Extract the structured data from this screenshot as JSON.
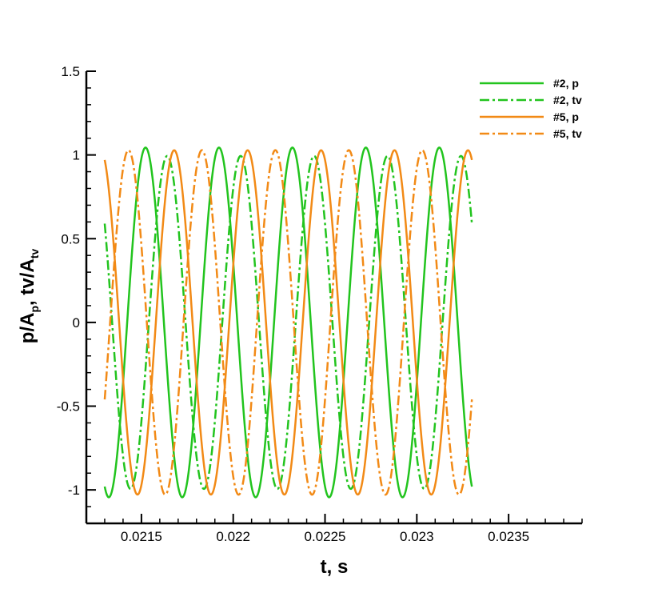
{
  "chart_data": {
    "type": "line",
    "title": "",
    "xlabel": "t, s",
    "ylabel": {
      "parts": [
        "p/A",
        "p",
        ", tv/A",
        "tv"
      ]
    },
    "xlim": [
      0.0212,
      0.0239
    ],
    "ylim": [
      -1.2,
      1.5
    ],
    "x_ticks": [
      {
        "value": 0.0215,
        "label": "0.0215"
      },
      {
        "value": 0.022,
        "label": "0.022"
      },
      {
        "value": 0.0225,
        "label": "0.0225"
      },
      {
        "value": 0.023,
        "label": "0.023"
      },
      {
        "value": 0.0235,
        "label": "0.0235"
      }
    ],
    "y_ticks": [
      {
        "value": 1.5,
        "label": "1.5"
      },
      {
        "value": 1,
        "label": "1"
      },
      {
        "value": 0.5,
        "label": "0.5"
      },
      {
        "value": 0,
        "label": "0"
      },
      {
        "value": -0.5,
        "label": "-0.5"
      },
      {
        "value": -1,
        "label": "-1"
      }
    ],
    "x_minor_step": 0.0001,
    "y_minor_step": 0.1,
    "grid": false,
    "legend_position": "top-right",
    "series": [
      {
        "name": "#2, p",
        "color": "#22c41e",
        "style": "solid",
        "t_start": 0.0213,
        "t_end": 0.0233,
        "samples": [
          [
            0.0213,
            -0.98
          ],
          [
            0.0214,
            -0.36
          ],
          [
            0.0215,
            0.98
          ],
          [
            0.0216,
            0.36
          ],
          [
            0.0217,
            -0.98
          ],
          [
            0.0218,
            -0.36
          ],
          [
            0.0219,
            0.98
          ],
          [
            0.022,
            0.36
          ],
          [
            0.0221,
            -0.98
          ],
          [
            0.0222,
            -0.36
          ],
          [
            0.0223,
            0.98
          ],
          [
            0.0224,
            0.36
          ],
          [
            0.0225,
            -0.98
          ],
          [
            0.0226,
            -0.36
          ],
          [
            0.0227,
            0.98
          ],
          [
            0.0228,
            0.36
          ],
          [
            0.0229,
            -0.98
          ],
          [
            0.023,
            -0.36
          ],
          [
            0.0231,
            0.98
          ],
          [
            0.0232,
            0.36
          ],
          [
            0.0233,
            -0.98
          ]
        ]
      },
      {
        "name": "#2, tv",
        "color": "#22c41e",
        "style": "dashdot",
        "t_start": 0.0213,
        "t_end": 0.0233,
        "samples": [
          [
            0.0213,
            0.59
          ],
          [
            0.0214,
            -0.8
          ],
          [
            0.0215,
            -0.59
          ],
          [
            0.0216,
            0.8
          ],
          [
            0.0217,
            0.59
          ],
          [
            0.0218,
            -0.8
          ],
          [
            0.0219,
            -0.59
          ],
          [
            0.022,
            0.8
          ],
          [
            0.0221,
            0.59
          ],
          [
            0.0222,
            -0.8
          ],
          [
            0.0223,
            -0.59
          ],
          [
            0.0224,
            0.8
          ],
          [
            0.0225,
            0.59
          ],
          [
            0.0226,
            -0.8
          ],
          [
            0.0227,
            -0.59
          ],
          [
            0.0228,
            0.8
          ],
          [
            0.0229,
            0.59
          ],
          [
            0.023,
            -0.8
          ],
          [
            0.0231,
            -0.59
          ],
          [
            0.0232,
            0.8
          ],
          [
            0.0233,
            0.59
          ]
        ]
      },
      {
        "name": "#5, p",
        "color": "#f28a16",
        "style": "solid",
        "t_start": 0.0213,
        "t_end": 0.0233,
        "samples": [
          [
            0.0213,
            0.97
          ],
          [
            0.0214,
            -0.34
          ],
          [
            0.0215,
            -0.97
          ],
          [
            0.0216,
            0.34
          ],
          [
            0.0217,
            0.97
          ],
          [
            0.0218,
            -0.34
          ],
          [
            0.0219,
            -0.97
          ],
          [
            0.022,
            0.34
          ],
          [
            0.0221,
            0.97
          ],
          [
            0.0222,
            -0.34
          ],
          [
            0.0223,
            -0.97
          ],
          [
            0.0224,
            0.34
          ],
          [
            0.0225,
            0.97
          ],
          [
            0.0226,
            -0.34
          ],
          [
            0.0227,
            -0.97
          ],
          [
            0.0228,
            0.34
          ],
          [
            0.0229,
            0.97
          ],
          [
            0.023,
            -0.34
          ],
          [
            0.0231,
            -0.97
          ],
          [
            0.0232,
            0.34
          ],
          [
            0.0233,
            0.97
          ]
        ]
      },
      {
        "name": "#5, tv",
        "color": "#f28a16",
        "style": "dashdot",
        "t_start": 0.0213,
        "t_end": 0.0233,
        "samples": [
          [
            0.0213,
            -0.46
          ],
          [
            0.0214,
            0.92
          ],
          [
            0.0215,
            0.46
          ],
          [
            0.0216,
            -0.92
          ],
          [
            0.0217,
            -0.46
          ],
          [
            0.0218,
            0.92
          ],
          [
            0.0219,
            0.46
          ],
          [
            0.022,
            -0.92
          ],
          [
            0.0221,
            -0.46
          ],
          [
            0.0222,
            0.92
          ],
          [
            0.0223,
            0.46
          ],
          [
            0.0224,
            -0.92
          ],
          [
            0.0225,
            -0.46
          ],
          [
            0.0226,
            0.92
          ],
          [
            0.0227,
            0.46
          ],
          [
            0.0228,
            -0.92
          ],
          [
            0.0229,
            -0.46
          ],
          [
            0.023,
            0.92
          ],
          [
            0.0231,
            0.46
          ],
          [
            0.0232,
            -0.92
          ],
          [
            0.0233,
            -0.46
          ]
        ]
      }
    ]
  }
}
